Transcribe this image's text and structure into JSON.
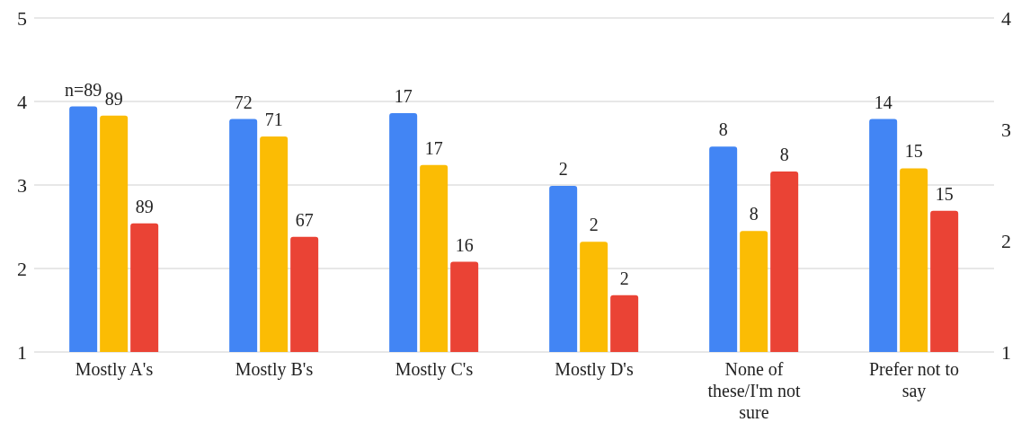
{
  "chart_data": {
    "type": "bar",
    "categories": [
      "Mostly A's",
      "Mostly B's",
      "Mostly C's",
      "Mostly D's",
      "None of these/I'm not sure",
      "Prefer not to say"
    ],
    "series": [
      {
        "color": "#4285f4",
        "values": [
          3.94,
          3.79,
          3.86,
          2.99,
          3.46,
          3.79
        ]
      },
      {
        "color": "#fbbc04",
        "values": [
          3.83,
          3.58,
          3.24,
          2.32,
          2.45,
          3.2
        ]
      },
      {
        "color": "#ea4335",
        "values": [
          2.54,
          2.38,
          2.08,
          1.68,
          3.16,
          2.69
        ]
      }
    ],
    "annotations": [
      "n=89",
      "89",
      "89",
      "72",
      "71",
      "67",
      "17",
      "17",
      "16",
      "2",
      "2",
      "2",
      "8",
      "8",
      "8",
      "14",
      "15",
      "15"
    ],
    "ylim": [
      1,
      5
    ],
    "yticks": [
      1,
      2,
      3,
      4,
      5
    ],
    "y2lim": [
      1,
      4
    ],
    "y2ticks": [
      1,
      2,
      3,
      4
    ],
    "grid": "y",
    "legend": false
  }
}
